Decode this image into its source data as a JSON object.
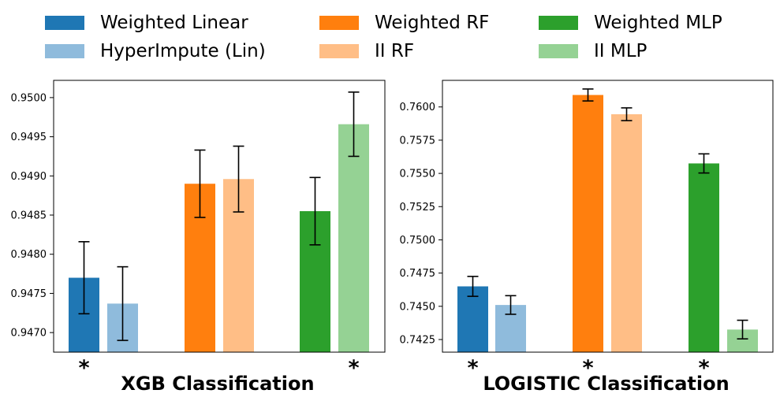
{
  "legend": {
    "items": [
      {
        "label": "Weighted Linear",
        "color": "#1f77b4"
      },
      {
        "label": "HyperImpute (Lin)",
        "color": "#8fbbdc"
      },
      {
        "label": "Weighted RF",
        "color": "#ff7f0e"
      },
      {
        "label": "II RF",
        "color": "#ffbe86"
      },
      {
        "label": "Weighted MLP",
        "color": "#2ca02c"
      },
      {
        "label": "II MLP",
        "color": "#95d294"
      }
    ]
  },
  "chart_data": [
    {
      "type": "bar",
      "title": "XGB Classification",
      "series": [
        {
          "name": "Weighted Linear",
          "color": "#1f77b4",
          "values": [
            0.9477
          ],
          "errors": [
            0.00046
          ]
        },
        {
          "name": "HyperImpute (Lin)",
          "color": "#8fbbdc",
          "values": [
            0.94737
          ],
          "errors": [
            0.00047
          ]
        },
        {
          "name": "Weighted RF",
          "color": "#ff7f0e",
          "values": [
            0.9489
          ],
          "errors": [
            0.00043
          ]
        },
        {
          "name": "II RF",
          "color": "#ffbe86",
          "values": [
            0.94896
          ],
          "errors": [
            0.00042
          ]
        },
        {
          "name": "Weighted MLP",
          "color": "#2ca02c",
          "values": [
            0.94855
          ],
          "errors": [
            0.00043
          ]
        },
        {
          "name": "II MLP",
          "color": "#95d294",
          "values": [
            0.94966
          ],
          "errors": [
            0.00041
          ]
        }
      ],
      "ylim": [
        0.94675,
        0.95022
      ],
      "yticks": [
        "0.9470",
        "0.9475",
        "0.9480",
        "0.9485",
        "0.9490",
        "0.9495",
        "0.9500"
      ],
      "yticks_values": [
        0.947,
        0.9475,
        0.948,
        0.9485,
        0.949,
        0.9495,
        0.95
      ],
      "stars": [
        true,
        false,
        false,
        false,
        false,
        true
      ],
      "star_label": "*"
    },
    {
      "type": "bar",
      "title": "LOGISTIC Classification",
      "series": [
        {
          "name": "Weighted Linear",
          "color": "#1f77b4",
          "values": [
            0.7465
          ],
          "errors": [
            0.00075
          ]
        },
        {
          "name": "HyperImpute (Lin)",
          "color": "#8fbbdc",
          "values": [
            0.7451
          ],
          "errors": [
            0.0007
          ]
        },
        {
          "name": "Weighted RF",
          "color": "#ff7f0e",
          "values": [
            0.7609
          ],
          "errors": [
            0.00045
          ]
        },
        {
          "name": "II RF",
          "color": "#ffbe86",
          "values": [
            0.75945
          ],
          "errors": [
            0.00048
          ]
        },
        {
          "name": "Weighted MLP",
          "color": "#2ca02c",
          "values": [
            0.75575
          ],
          "errors": [
            0.00072
          ]
        },
        {
          "name": "II MLP",
          "color": "#95d294",
          "values": [
            0.74325
          ],
          "errors": [
            0.0007
          ]
        }
      ],
      "ylim": [
        0.74155,
        0.762
      ],
      "yticks": [
        "0.7425",
        "0.7450",
        "0.7475",
        "0.7500",
        "0.7525",
        "0.7550",
        "0.7575",
        "0.7600"
      ],
      "yticks_values": [
        0.7425,
        0.745,
        0.7475,
        0.75,
        0.7525,
        0.755,
        0.7575,
        0.76
      ],
      "stars": [
        true,
        false,
        true,
        false,
        true,
        false
      ],
      "star_label": "*"
    }
  ]
}
